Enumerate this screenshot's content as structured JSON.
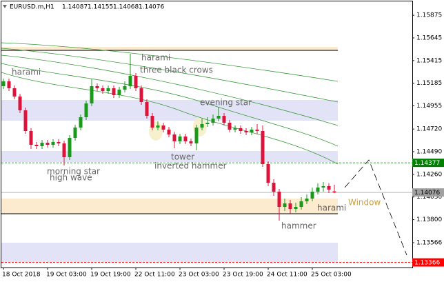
{
  "chart_data": {
    "type": "candlestick",
    "title": "EURUSD.m,H1",
    "header_ohlc": [
      1.14087,
      1.14155,
      1.14068,
      1.14076
    ],
    "categories": [
      "18 Oct 2018",
      null,
      null,
      null,
      null,
      null,
      null,
      null,
      "19 Oct 03:00",
      null,
      null,
      null,
      null,
      null,
      null,
      null,
      "19 Oct 19:00",
      null,
      null,
      null,
      null,
      null,
      null,
      null,
      "22 Oct 11:00",
      null,
      null,
      null,
      null,
      null,
      null,
      null,
      "23 Oct 03:00",
      null,
      null,
      null,
      null,
      null,
      null,
      null,
      "23 Oct 19:00",
      null,
      null,
      null,
      null,
      null,
      null,
      null,
      "24 Oct 11:00",
      null,
      null,
      null,
      null,
      null,
      null,
      null,
      "25 Oct 03:00",
      null,
      null,
      null,
      null
    ],
    "open": [
      1.15155,
      1.15204,
      1.15134,
      1.1505,
      1.1491,
      1.147,
      1.1456,
      1.14546,
      1.14581,
      1.1456,
      1.14588,
      1.14574,
      1.14434,
      1.1463,
      1.14735,
      1.1484,
      1.1498,
      1.15155,
      1.15134,
      1.15106,
      1.15134,
      1.15064,
      1.1512,
      1.15155,
      1.1526,
      1.15134,
      1.14994,
      1.14854,
      1.14735,
      1.14756,
      1.14714,
      1.14665,
      1.14595,
      1.14644,
      1.14595,
      1.14574,
      1.14735,
      1.1477,
      1.14784,
      1.14826,
      1.14854,
      1.14784,
      1.14714,
      1.14728,
      1.147,
      1.14686,
      1.14714,
      1.147,
      1.14364,
      1.14175,
      1.14084,
      1.1393,
      1.13965,
      1.13909,
      1.1393,
      1.13986,
      1.14014,
      1.14084,
      1.14126,
      1.1414,
      1.14087
    ],
    "high": [
      1.15232,
      1.15232,
      1.15162,
      1.15078,
      1.14938,
      1.14728,
      1.14588,
      1.14609,
      1.14609,
      1.14616,
      1.14616,
      1.14602,
      1.14658,
      1.14763,
      1.14868,
      1.15008,
      1.15225,
      1.15183,
      1.15162,
      1.15162,
      1.15162,
      1.15148,
      1.15204,
      1.15484,
      1.15288,
      1.15162,
      1.15022,
      1.14882,
      1.14798,
      1.14784,
      1.14742,
      1.14693,
      1.14672,
      1.14672,
      1.14623,
      1.14763,
      1.14826,
      1.1484,
      1.14868,
      1.14945,
      1.14882,
      1.14812,
      1.14756,
      1.14756,
      1.14728,
      1.14742,
      1.1477,
      1.14756,
      1.14392,
      1.1421,
      1.14112,
      1.14014,
      1.14,
      1.13972,
      1.14028,
      1.14056,
      1.14126,
      1.14168,
      1.14182,
      1.14168,
      1.14155
    ],
    "low": [
      1.15127,
      1.15106,
      1.15022,
      1.14882,
      1.14672,
      1.14518,
      1.14518,
      1.14518,
      1.14532,
      1.14532,
      1.14546,
      1.1435,
      1.14406,
      1.14602,
      1.14707,
      1.14812,
      1.14952,
      1.15106,
      1.15078,
      1.15078,
      1.15036,
      1.15036,
      1.15092,
      1.15127,
      1.15106,
      1.14966,
      1.14826,
      1.14707,
      1.14707,
      1.14686,
      1.14637,
      1.14525,
      1.14567,
      1.14567,
      1.14546,
      1.14504,
      1.14707,
      1.14742,
      1.14756,
      1.14798,
      1.14756,
      1.14686,
      1.14686,
      1.14672,
      1.14658,
      1.14658,
      1.14672,
      1.14336,
      1.1414,
      1.14042,
      1.1379,
      1.13888,
      1.1386,
      1.13874,
      1.13902,
      1.13958,
      1.13986,
      1.14056,
      1.14084,
      1.1407,
      1.14068
    ],
    "close": [
      1.15204,
      1.15134,
      1.1505,
      1.1491,
      1.147,
      1.1456,
      1.14546,
      1.14581,
      1.1456,
      1.14588,
      1.14574,
      1.14434,
      1.1463,
      1.14735,
      1.1484,
      1.1498,
      1.15155,
      1.15134,
      1.15106,
      1.15134,
      1.15064,
      1.1512,
      1.15155,
      1.1526,
      1.15134,
      1.14994,
      1.14854,
      1.14735,
      1.14756,
      1.14714,
      1.14665,
      1.14595,
      1.14644,
      1.14595,
      1.14574,
      1.14735,
      1.1477,
      1.14784,
      1.14826,
      1.14854,
      1.14784,
      1.14714,
      1.14728,
      1.147,
      1.14686,
      1.14714,
      1.147,
      1.14364,
      1.14175,
      1.14084,
      1.1393,
      1.13965,
      1.13909,
      1.1393,
      1.13986,
      1.14014,
      1.14084,
      1.14126,
      1.1414,
      1.14105,
      1.14076
    ],
    "up_color": "#1a9a1a",
    "down_color": "#dc143c",
    "ylim": [
      1.13314,
      1.1603
    ],
    "yticks": [
      1.15875,
      1.15645,
      1.15415,
      1.15185,
      1.14955,
      {
        "value": 1.1472,
        "label": "1.14720"
      },
      {
        "value": 1.1449,
        "label": "1.14490"
      },
      {
        "value": 1.1426,
        "label": "1.14260"
      },
      {
        "value": 1.1403,
        "label": "1.14030"
      },
      {
        "value": 1.138,
        "label": "1.13800"
      },
      1.13566
    ],
    "price_lines": [
      {
        "value": 1.14377,
        "color": "#008000",
        "dash": true
      },
      {
        "value": 1.14076,
        "color": "#a0a0a0",
        "dash": false
      },
      {
        "value": 1.13366,
        "color": "#ff0000",
        "dash": true
      }
    ],
    "annotations": [
      "harami",
      "three black crows",
      "harami",
      "evening star",
      "tower",
      "inverted hammer",
      "morning star",
      "high wave",
      "hammer",
      "harami",
      "Window"
    ]
  }
}
